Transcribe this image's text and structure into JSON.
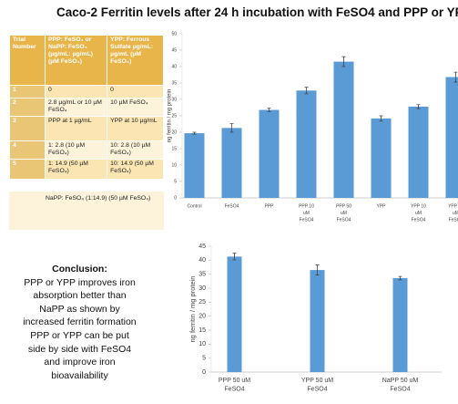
{
  "title": "Caco-2 Ferritin levels after 24 h incubation with FeSO4 and PPP or YPP",
  "table": {
    "header": [
      "Trial Number",
      "PPP: FeSO₄ or NaPP: FeSO₄ (µg/mL: µg/mL) (µM FeSO₄)",
      "YPP: Ferrous Sulfate µg/mL: µg/mL (µM FeSO₄)"
    ],
    "rows": [
      [
        "1",
        "0",
        "0"
      ],
      [
        "2",
        "2.8 µg/mL or 10 µM FeSO₄",
        "10 µM FeSO₄"
      ],
      [
        "3",
        "PPP at 1 µg/mL",
        "YPP at 10 µg/mL"
      ],
      [
        "4",
        "1: 2.8 (10 µM FeSO₄)",
        "10: 2.8 (10 µM FeSO₄)"
      ],
      [
        "5",
        "1: 14.9 (50 µM FeSO₄)",
        "10: 14.9 (50 µM FeSO₄)"
      ]
    ],
    "note": "NaPP: FeSO₄ (1:14.9) (50 µM FeSO₄)"
  },
  "conclusion": {
    "heading": "Conclusion:",
    "lines": [
      "PPP or YPP improves iron",
      "absorption better than",
      "NaPP as shown by",
      "increased ferritin formation",
      "PPP or YPP can be put",
      "side by side with FeSO4",
      "and improve iron",
      "bioavailability"
    ]
  },
  "chart_data": [
    {
      "type": "bar",
      "y_label": "ng ferritin / mg protein",
      "categories": [
        [
          "Control"
        ],
        [
          "FeSO4"
        ],
        [
          "PPP"
        ],
        [
          "PPP 10",
          "uM",
          "FeSO4"
        ],
        [
          "PPP 50",
          "uM",
          "FeSO4"
        ],
        [
          "YPP"
        ],
        [
          "YPP 10",
          "uM",
          "FeSO4"
        ],
        [
          "YPP 50",
          "uM",
          "FeSO4"
        ]
      ],
      "values": [
        19.7,
        21.3,
        26.8,
        32.7,
        41.5,
        24.2,
        27.8,
        36.8
      ],
      "errors": [
        0.3,
        1.3,
        0.5,
        1.0,
        1.5,
        0.8,
        0.6,
        1.5
      ],
      "color": "#5b9bd5",
      "ylim": [
        0,
        50
      ],
      "yticks": [
        0,
        5,
        10,
        15,
        20,
        25,
        30,
        35,
        40,
        45,
        50
      ]
    },
    {
      "type": "bar",
      "y_label": "ng ferritin / mg protein",
      "categories": [
        [
          "PPP 50 uM",
          "FeSO4"
        ],
        [
          "YPP 50 uM",
          "FeSO4"
        ],
        [
          "NaPP 50 uM",
          "FeSO4"
        ]
      ],
      "values": [
        41.3,
        36.5,
        33.6
      ],
      "errors": [
        1.2,
        1.8,
        0.6
      ],
      "color": "#5b9bd5",
      "ylim": [
        0,
        45
      ],
      "yticks": [
        0,
        5,
        10,
        15,
        20,
        25,
        30,
        35,
        40,
        45
      ]
    }
  ]
}
